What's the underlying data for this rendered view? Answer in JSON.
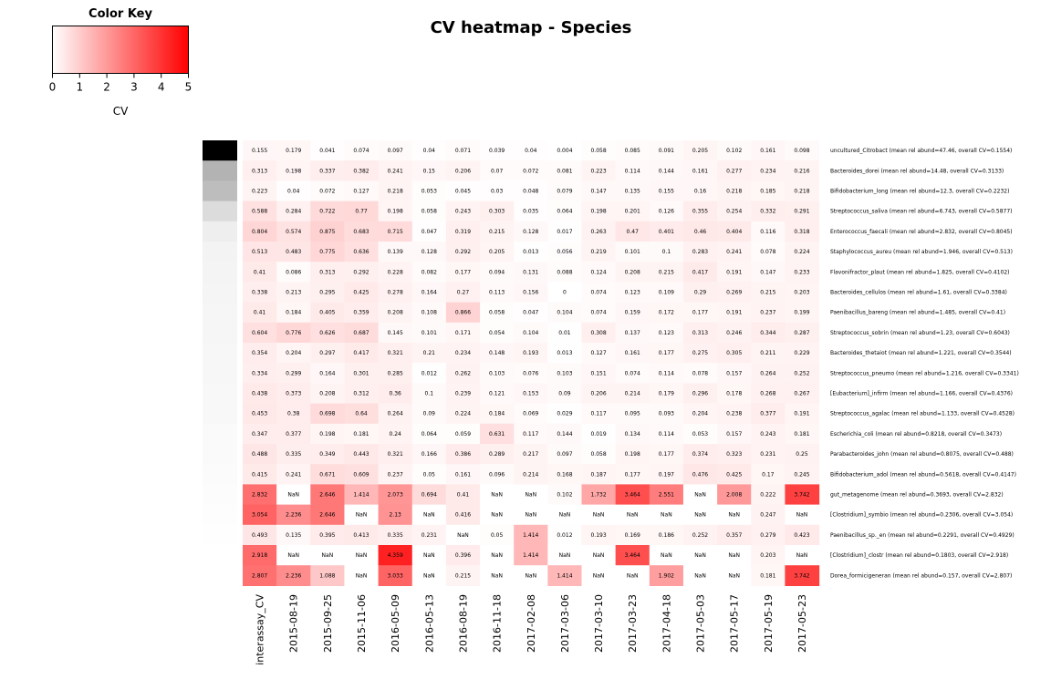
{
  "chart_data": {
    "type": "heatmap",
    "title": "CV heatmap - Species",
    "color_key": {
      "title": "Color Key",
      "xlabel": "CV",
      "range": [
        0,
        5
      ],
      "ticks": [
        "0",
        "1",
        "2",
        "3",
        "4",
        "5"
      ],
      "low_color": "#ffffff",
      "high_color": "#ff0000"
    },
    "columns": [
      "interassay_CV",
      "2015-08-19",
      "2015-09-25",
      "2015-11-06",
      "2016-05-09",
      "2016-05-13",
      "2016-08-19",
      "2016-11-18",
      "2017-02-08",
      "2017-03-06",
      "2017-03-10",
      "2017-03-23",
      "2017-04-18",
      "2017-05-03",
      "2017-05-17",
      "2017-05-19",
      "2017-05-23"
    ],
    "side_colors": [
      "#000000",
      "#b3b3b3",
      "#bdbdbd",
      "#dcdcdc",
      "#eeeeee",
      "#f3f3f3",
      "#f4f4f4",
      "#f5f5f5",
      "#f6f6f6",
      "#f6f6f6",
      "#f7f7f7",
      "#f7f7f7",
      "#f8f8f8",
      "#f8f8f8",
      "#fafafa",
      "#fafafa",
      "#fbfbfb",
      "#fcfcfc",
      "#fdfdfd",
      "#fefefe",
      "#ffffff",
      "#ffffff"
    ],
    "rows": [
      {
        "label": "uncultured_Citrobact (mean rel abund=47.46, overall CV=0.1554)",
        "values": [
          "0.155",
          "0.179",
          "0.041",
          "0.074",
          "0.097",
          "0.04",
          "0.071",
          "0.039",
          "0.04",
          "0.004",
          "0.058",
          "0.085",
          "0.091",
          "0.205",
          "0.102",
          "0.161",
          "0.098"
        ]
      },
      {
        "label": "Bacteroides_dorei (mean rel abund=14.48, overall CV=0.3133)",
        "values": [
          "0.313",
          "0.198",
          "0.337",
          "0.382",
          "0.241",
          "0.15",
          "0.206",
          "0.07",
          "0.072",
          "0.081",
          "0.223",
          "0.114",
          "0.144",
          "0.161",
          "0.277",
          "0.234",
          "0.216"
        ]
      },
      {
        "label": "Bifidobacterium_long (mean rel abund=12.3, overall CV=0.2232)",
        "values": [
          "0.223",
          "0.04",
          "0.072",
          "0.127",
          "0.218",
          "0.053",
          "0.045",
          "0.03",
          "0.048",
          "0.079",
          "0.147",
          "0.135",
          "0.155",
          "0.16",
          "0.218",
          "0.185",
          "0.218"
        ]
      },
      {
        "label": "Streptococcus_saliva (mean rel abund=6.743, overall CV=0.5877)",
        "values": [
          "0.588",
          "0.284",
          "0.722",
          "0.77",
          "0.198",
          "0.058",
          "0.243",
          "0.303",
          "0.035",
          "0.064",
          "0.198",
          "0.201",
          "0.126",
          "0.355",
          "0.254",
          "0.332",
          "0.291"
        ]
      },
      {
        "label": "Enterococcus_faecali (mean rel abund=2.832, overall CV=0.8045)",
        "values": [
          "0.804",
          "0.574",
          "0.875",
          "0.683",
          "0.715",
          "0.047",
          "0.319",
          "0.215",
          "0.128",
          "0.017",
          "0.263",
          "0.47",
          "0.401",
          "0.46",
          "0.404",
          "0.116",
          "0.318"
        ]
      },
      {
        "label": "Staphylococcus_aureu (mean rel abund=1.946, overall CV=0.513)",
        "values": [
          "0.513",
          "0.483",
          "0.775",
          "0.636",
          "0.139",
          "0.128",
          "0.292",
          "0.205",
          "0.013",
          "0.056",
          "0.219",
          "0.101",
          "0.1",
          "0.283",
          "0.241",
          "0.078",
          "0.224"
        ]
      },
      {
        "label": "Flavonifractor_plaut (mean rel abund=1.825, overall CV=0.4102)",
        "values": [
          "0.41",
          "0.086",
          "0.313",
          "0.292",
          "0.228",
          "0.082",
          "0.177",
          "0.094",
          "0.131",
          "0.088",
          "0.124",
          "0.208",
          "0.215",
          "0.417",
          "0.191",
          "0.147",
          "0.233"
        ]
      },
      {
        "label": "Bacteroides_cellulos (mean rel abund=1.61, overall CV=0.3384)",
        "values": [
          "0.338",
          "0.213",
          "0.295",
          "0.425",
          "0.278",
          "0.164",
          "0.27",
          "0.113",
          "0.156",
          "0",
          "0.074",
          "0.123",
          "0.109",
          "0.29",
          "0.269",
          "0.215",
          "0.203"
        ]
      },
      {
        "label": "Paenibacillus_bareng (mean rel abund=1.485, overall CV=0.41)",
        "values": [
          "0.41",
          "0.184",
          "0.405",
          "0.359",
          "0.208",
          "0.108",
          "0.866",
          "0.058",
          "0.047",
          "0.104",
          "0.074",
          "0.159",
          "0.172",
          "0.177",
          "0.191",
          "0.237",
          "0.199"
        ]
      },
      {
        "label": "Streptococcus_sobrin (mean rel abund=1.23, overall CV=0.6043)",
        "values": [
          "0.604",
          "0.776",
          "0.626",
          "0.687",
          "0.145",
          "0.101",
          "0.171",
          "0.054",
          "0.104",
          "0.01",
          "0.308",
          "0.137",
          "0.123",
          "0.313",
          "0.246",
          "0.344",
          "0.287"
        ]
      },
      {
        "label": "Bacteroides_thetaiot (mean rel abund=1.221, overall CV=0.3544)",
        "values": [
          "0.354",
          "0.204",
          "0.297",
          "0.417",
          "0.321",
          "0.21",
          "0.234",
          "0.148",
          "0.193",
          "0.013",
          "0.127",
          "0.161",
          "0.177",
          "0.275",
          "0.305",
          "0.211",
          "0.229"
        ]
      },
      {
        "label": "Streptococcus_pneumo (mean rel abund=1.216, overall CV=0.3341)",
        "values": [
          "0.334",
          "0.299",
          "0.164",
          "0.301",
          "0.285",
          "0.012",
          "0.262",
          "0.103",
          "0.076",
          "0.103",
          "0.151",
          "0.074",
          "0.114",
          "0.078",
          "0.157",
          "0.264",
          "0.252"
        ]
      },
      {
        "label": "[Eubacterium]_infirm (mean rel abund=1.166, overall CV=0.4376)",
        "values": [
          "0.438",
          "0.373",
          "0.208",
          "0.312",
          "0.36",
          "0.1",
          "0.239",
          "0.121",
          "0.153",
          "0.09",
          "0.206",
          "0.214",
          "0.179",
          "0.296",
          "0.178",
          "0.268",
          "0.267"
        ]
      },
      {
        "label": "Streptococcus_agalac (mean rel abund=1.133, overall CV=0.4528)",
        "values": [
          "0.453",
          "0.38",
          "0.698",
          "0.64",
          "0.264",
          "0.09",
          "0.224",
          "0.184",
          "0.069",
          "0.029",
          "0.117",
          "0.095",
          "0.093",
          "0.204",
          "0.238",
          "0.377",
          "0.191"
        ]
      },
      {
        "label": "Escherichia_coli (mean rel abund=0.8218, overall CV=0.3473)",
        "values": [
          "0.347",
          "0.377",
          "0.198",
          "0.181",
          "0.24",
          "0.064",
          "0.059",
          "0.631",
          "0.117",
          "0.144",
          "0.019",
          "0.134",
          "0.114",
          "0.053",
          "0.157",
          "0.243",
          "0.181"
        ]
      },
      {
        "label": "Parabacteroides_john (mean rel abund=0.8075, overall CV=0.488)",
        "values": [
          "0.488",
          "0.335",
          "0.349",
          "0.443",
          "0.321",
          "0.166",
          "0.386",
          "0.289",
          "0.217",
          "0.097",
          "0.058",
          "0.198",
          "0.177",
          "0.374",
          "0.323",
          "0.231",
          "0.25"
        ]
      },
      {
        "label": "Bifidobacterium_adol (mean rel abund=0.5618, overall CV=0.4147)",
        "values": [
          "0.415",
          "0.241",
          "0.671",
          "0.609",
          "0.237",
          "0.05",
          "0.161",
          "0.096",
          "0.214",
          "0.168",
          "0.187",
          "0.177",
          "0.197",
          "0.476",
          "0.425",
          "0.17",
          "0.245"
        ]
      },
      {
        "label": "gut_metagenome (mean rel abund=0.3693, overall CV=2.832)",
        "values": [
          "2.832",
          "NaN",
          "2.646",
          "1.414",
          "2.073",
          "0.694",
          "0.41",
          "NaN",
          "NaN",
          "0.102",
          "1.732",
          "3.464",
          "2.551",
          "NaN",
          "2.008",
          "0.222",
          "3.742"
        ]
      },
      {
        "label": "[Clostridium]_symbio (mean rel abund=0.2306, overall CV=3.054)",
        "values": [
          "3.054",
          "2.236",
          "2.646",
          "NaN",
          "2.13",
          "NaN",
          "0.416",
          "NaN",
          "NaN",
          "NaN",
          "NaN",
          "NaN",
          "NaN",
          "NaN",
          "NaN",
          "0.247",
          "NaN"
        ]
      },
      {
        "label": "Paenibacillus_sp._en (mean rel abund=0.2291, overall CV=0.4929)",
        "values": [
          "0.493",
          "0.135",
          "0.395",
          "0.413",
          "0.335",
          "0.231",
          "NaN",
          "0.05",
          "1.414",
          "0.012",
          "0.193",
          "0.169",
          "0.186",
          "0.252",
          "0.357",
          "0.279",
          "0.423"
        ]
      },
      {
        "label": "[Clostridium]_clostr (mean rel abund=0.1803, overall CV=2.918)",
        "values": [
          "2.918",
          "NaN",
          "NaN",
          "NaN",
          "4.359",
          "NaN",
          "0.396",
          "NaN",
          "1.414",
          "NaN",
          "NaN",
          "3.464",
          "NaN",
          "NaN",
          "NaN",
          "0.203",
          "NaN"
        ]
      },
      {
        "label": "Dorea_formicigeneran (mean rel abund=0.157, overall CV=2.807)",
        "values": [
          "2.807",
          "2.236",
          "1.088",
          "NaN",
          "3.033",
          "NaN",
          "0.215",
          "NaN",
          "NaN",
          "1.414",
          "NaN",
          "NaN",
          "1.902",
          "NaN",
          "NaN",
          "0.181",
          "3.742"
        ]
      }
    ]
  }
}
